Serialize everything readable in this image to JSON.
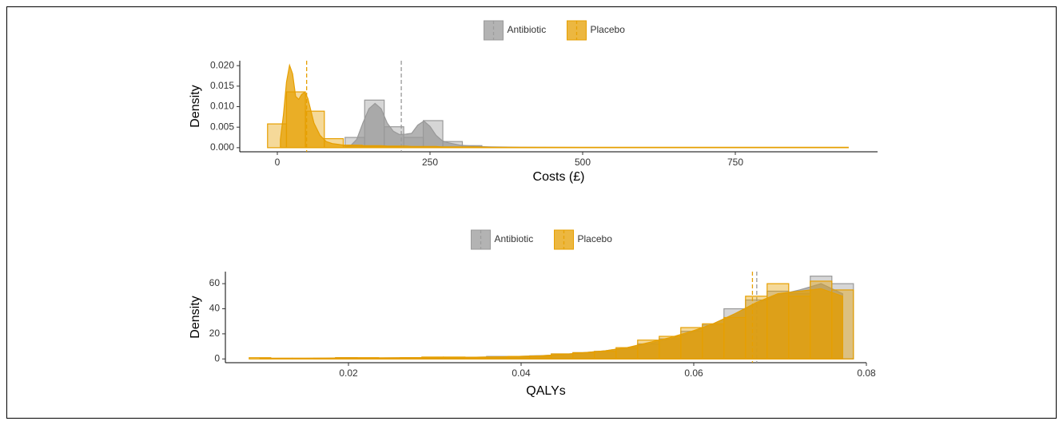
{
  "chart_data": [
    {
      "type": "histogram",
      "legend": "top",
      "x_label": "Costs (£)",
      "y_label": "Density",
      "xlim": [
        -61.5,
        983
      ],
      "ylim": [
        -0.001,
        0.0212
      ],
      "xticks": [
        0,
        250,
        500,
        750
      ],
      "yticks": [
        {
          "value": 0,
          "label": "0.000"
        },
        {
          "value": 0.005,
          "label": "0.005"
        },
        {
          "value": 0.01,
          "label": "0.010"
        },
        {
          "value": 0.015,
          "label": "0.015"
        },
        {
          "value": 0.02,
          "label": "0.020"
        }
      ],
      "density_x": [
        5,
        10,
        15,
        20,
        25,
        30,
        35,
        40,
        45,
        50,
        55,
        60,
        70,
        80,
        90,
        100,
        110,
        120,
        130,
        140,
        150,
        160,
        170,
        180,
        190,
        200,
        210,
        220,
        230,
        240,
        250,
        260,
        270,
        280,
        300,
        325,
        350,
        400,
        500,
        600,
        700,
        800,
        935
      ],
      "series": [
        {
          "name": "Antibiotic",
          "color": "#999999",
          "bins": [
            111,
            143,
            175,
            207,
            239,
            271,
            303,
            335
          ],
          "values": [
            0.0025,
            0.0116,
            0.0051,
            0.0025,
            0.0066,
            0.0015,
            0.0005
          ],
          "density": [
            null,
            null,
            null,
            null,
            null,
            null,
            null,
            null,
            null,
            null,
            null,
            null,
            null,
            null,
            null,
            null,
            0.0001,
            0.0005,
            0.002,
            0.006,
            0.0095,
            0.0108,
            0.0095,
            0.006,
            0.004,
            0.0032,
            0.0033,
            0.0035,
            0.0055,
            0.0065,
            0.0052,
            0.003,
            0.0017,
            0.0012,
            0.0006,
            0.0003,
            0.0002,
            0.0001,
            5e-05,
            null,
            null,
            null,
            null
          ],
          "mean": 203
        },
        {
          "name": "Placebo",
          "color": "#E69F00",
          "bins": [
            -16,
            15,
            46,
            77,
            108,
            139,
            170,
            201
          ],
          "values": [
            0.0058,
            0.0136,
            0.0089,
            0.0022,
            0.0006,
            0.0004,
            0.0003
          ],
          "density": [
            0.002,
            0.008,
            0.016,
            0.0201,
            0.018,
            0.0125,
            0.0118,
            0.013,
            0.0135,
            0.012,
            0.009,
            0.006,
            0.003,
            0.0015,
            0.001,
            0.0008,
            0.0006,
            0.0006,
            0.0006,
            0.0005,
            0.0005,
            0.0005,
            0.0005,
            0.0004,
            0.0004,
            0.0004,
            0.0004,
            0.0003,
            0.0003,
            0.0003,
            0.0003,
            0.0003,
            0.0002,
            0.0002,
            0.0002,
            0.0002,
            0.0001,
            0.0001,
            0.0001,
            0.0001,
            0.0001,
            0.0001,
            0.0001
          ],
          "mean": 48
        }
      ]
    },
    {
      "type": "histogram",
      "legend": "top",
      "x_label": "QALYs",
      "y_label": "Density",
      "xlim": [
        0.00574,
        0.08
      ],
      "ylim": [
        -3,
        69.6
      ],
      "xticks": [
        0.02,
        0.04,
        0.06,
        0.08
      ],
      "yticks": [
        0,
        20,
        40,
        60
      ],
      "density_x": [
        0.00975,
        0.01225,
        0.01475,
        0.01725,
        0.01975,
        0.02225,
        0.02475,
        0.02725,
        0.02975,
        0.03225,
        0.03475,
        0.03725,
        0.03975,
        0.04225,
        0.04475,
        0.04725,
        0.04975,
        0.05225,
        0.05475,
        0.05725,
        0.05975,
        0.06225,
        0.06475,
        0.06725,
        0.06975,
        0.07225,
        0.07475,
        0.07725
      ],
      "series": [
        {
          "name": "Antibiotic",
          "color": "#999999",
          "bins": [
            0.0085,
            0.011,
            0.0135,
            0.016,
            0.0185,
            0.021,
            0.0235,
            0.026,
            0.0285,
            0.031,
            0.0335,
            0.036,
            0.0385,
            0.041,
            0.0435,
            0.046,
            0.0485,
            0.051,
            0.0535,
            0.056,
            0.0585,
            0.061,
            0.0635,
            0.066,
            0.0685,
            0.071,
            0.0735,
            0.076,
            0.0785
          ],
          "values": [
            0,
            0,
            0,
            0.5,
            1,
            0.5,
            0.5,
            0.5,
            1,
            1,
            1,
            2,
            2,
            2.5,
            4,
            5,
            6,
            8,
            12,
            16,
            22,
            27,
            40,
            47,
            54,
            52,
            66,
            60
          ],
          "density": [
            null,
            null,
            null,
            0.4,
            0.6,
            0.7,
            0.8,
            0.9,
            1,
            1.2,
            1.4,
            1.6,
            2,
            2.6,
            3.5,
            5,
            6.5,
            9,
            12,
            16,
            21,
            28,
            36,
            44,
            51,
            55,
            60,
            52
          ],
          "mean": 0.0673
        },
        {
          "name": "Placebo",
          "color": "#E69F00",
          "bins": [
            0.0085,
            0.011,
            0.0135,
            0.016,
            0.0185,
            0.021,
            0.0235,
            0.026,
            0.0285,
            0.031,
            0.0335,
            0.036,
            0.0385,
            0.041,
            0.0435,
            0.046,
            0.0485,
            0.051,
            0.0535,
            0.056,
            0.0585,
            0.061,
            0.0635,
            0.066,
            0.0685,
            0.071,
            0.0735,
            0.076,
            0.0785
          ],
          "values": [
            1,
            0.5,
            0.5,
            0.5,
            1,
            1,
            0.5,
            1,
            1.5,
            1.5,
            1,
            1.5,
            2,
            2,
            4,
            5,
            6,
            9,
            15,
            18,
            25,
            28,
            33,
            50,
            60,
            50,
            62,
            55
          ],
          "density": [
            0.5,
            0.6,
            0.6,
            0.7,
            0.8,
            0.8,
            0.9,
            1,
            1.1,
            1.2,
            1.4,
            1.6,
            2,
            2.5,
            3.5,
            5,
            6.5,
            9,
            13,
            17,
            22,
            28,
            36,
            45,
            52,
            54,
            56,
            50
          ],
          "mean": 0.0668
        }
      ]
    }
  ]
}
